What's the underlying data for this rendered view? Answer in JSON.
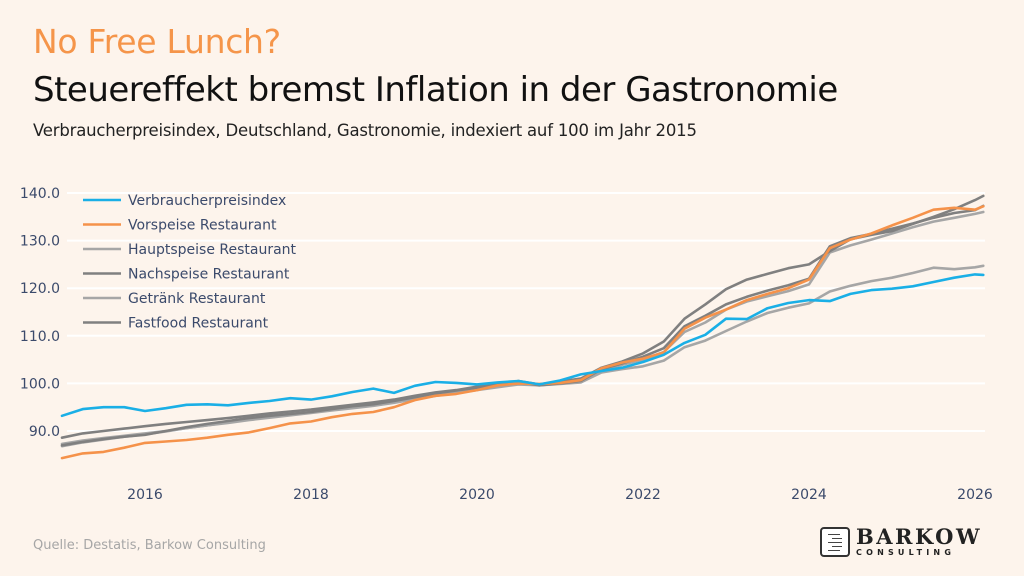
{
  "header": {
    "kicker": "No Free Lunch?",
    "title": "Steuereffekt bremst Inflation in der Gastronomie",
    "subtitle": "Verbraucherpreisindex, Deutschland, Gastronomie, indexiert auf 100 im Jahr 2015"
  },
  "footer": {
    "source": "Quelle: Destatis, Barkow Consulting",
    "logo_name": "BARKOW",
    "logo_sub": "CONSULTING"
  },
  "chart_data": {
    "type": "line",
    "title": "Steuereffekt bremst Inflation in der Gastronomie",
    "subtitle": "Verbraucherpreisindex, Deutschland, Gastronomie, indexiert auf 100 im Jahr 2015",
    "xlabel": "",
    "ylabel": "",
    "xlim": [
      2015.0,
      2026.15
    ],
    "ylim": [
      80.5,
      142.5
    ],
    "xticks": [
      2016,
      2018,
      2020,
      2022,
      2024,
      2026
    ],
    "xtick_labels": [
      "2016",
      "2018",
      "2020",
      "2022",
      "2024",
      "2026"
    ],
    "yticks": [
      90,
      100,
      110,
      120,
      130,
      140
    ],
    "ytick_labels": [
      "90.0",
      "100.0",
      "110.0",
      "120.0",
      "130.0",
      "140.0"
    ],
    "grid": "horizontal",
    "legend_position": "top-left",
    "x": [
      2015.0,
      2015.25,
      2015.5,
      2015.75,
      2016.0,
      2016.25,
      2016.5,
      2016.75,
      2017.0,
      2017.25,
      2017.5,
      2017.75,
      2018.0,
      2018.25,
      2018.5,
      2018.75,
      2019.0,
      2019.25,
      2019.5,
      2019.75,
      2020.0,
      2020.25,
      2020.5,
      2020.75,
      2021.0,
      2021.25,
      2021.5,
      2021.75,
      2022.0,
      2022.25,
      2022.5,
      2022.75,
      2023.0,
      2023.25,
      2023.5,
      2023.75,
      2024.0,
      2024.25,
      2024.5,
      2024.75,
      2025.0,
      2025.25,
      2025.5,
      2025.75,
      2026.0,
      2026.1
    ],
    "series": [
      {
        "name": "Verbraucherpreisindex",
        "color": "#1aafe6",
        "values": [
          93.2,
          94.6,
          95.0,
          95.0,
          94.2,
          94.8,
          95.5,
          95.6,
          95.4,
          95.9,
          96.3,
          96.9,
          96.6,
          97.3,
          98.2,
          98.9,
          98.0,
          99.5,
          100.3,
          100.1,
          99.8,
          100.2,
          100.5,
          99.8,
          100.6,
          101.9,
          102.6,
          103.3,
          104.5,
          106.0,
          108.5,
          110.2,
          113.6,
          113.5,
          115.8,
          116.9,
          117.5,
          117.3,
          118.8,
          119.6,
          119.9,
          120.4,
          121.3,
          122.2,
          122.9,
          122.8
        ]
      },
      {
        "name": "Vorspeise Restaurant",
        "color": "#f5924a",
        "values": [
          84.3,
          85.3,
          85.6,
          86.5,
          87.5,
          87.8,
          88.1,
          88.6,
          89.2,
          89.7,
          90.6,
          91.6,
          92.0,
          92.9,
          93.6,
          94.0,
          95.0,
          96.5,
          97.4,
          97.8,
          98.6,
          99.6,
          100.0,
          99.9,
          100.1,
          100.7,
          103.2,
          104.4,
          105.2,
          106.5,
          111.5,
          113.8,
          115.5,
          117.5,
          118.8,
          120.0,
          121.8,
          128.4,
          130.2,
          131.5,
          133.2,
          134.8,
          136.5,
          136.9,
          136.5,
          137.2
        ]
      },
      {
        "name": "Hauptspeise Restaurant",
        "color": "#a6a6a6",
        "values": [
          86.8,
          87.6,
          88.2,
          88.8,
          89.3,
          89.9,
          90.6,
          91.2,
          91.8,
          92.4,
          93.1,
          93.6,
          94.0,
          94.6,
          95.2,
          95.6,
          96.2,
          97.0,
          97.8,
          98.4,
          99.0,
          99.6,
          100.0,
          99.7,
          100.1,
          100.6,
          102.8,
          103.9,
          105.0,
          106.6,
          110.8,
          112.8,
          115.5,
          117.2,
          118.3,
          119.4,
          120.8,
          127.5,
          129.0,
          130.2,
          131.5,
          132.8,
          134.0,
          134.8,
          135.6,
          136.0
        ]
      },
      {
        "name": "Nachspeise Restaurant",
        "color": "#808080",
        "values": [
          88.6,
          89.5,
          90.0,
          90.5,
          91.0,
          91.5,
          91.9,
          92.3,
          92.7,
          93.2,
          93.7,
          94.1,
          94.5,
          95.0,
          95.5,
          96.0,
          96.6,
          97.4,
          98.1,
          98.6,
          99.3,
          99.8,
          100.5,
          99.8,
          100.4,
          101.0,
          103.3,
          104.6,
          106.3,
          108.8,
          113.6,
          116.6,
          119.8,
          121.8,
          123.0,
          124.2,
          125.0,
          127.8,
          130.3,
          131.2,
          132.0,
          133.5,
          135.0,
          136.6,
          138.5,
          139.4
        ]
      },
      {
        "name": "Getränk Restaurant",
        "color": "#a6a6a6",
        "values": [
          87.3,
          88.0,
          88.5,
          89.0,
          89.5,
          90.0,
          90.6,
          91.2,
          91.7,
          92.3,
          92.8,
          93.3,
          93.8,
          94.3,
          94.8,
          95.3,
          95.9,
          96.7,
          97.4,
          98.0,
          98.6,
          99.2,
          99.8,
          99.6,
          99.9,
          100.2,
          102.3,
          103.0,
          103.6,
          104.8,
          107.6,
          109.0,
          111.0,
          113.0,
          114.8,
          115.9,
          116.8,
          119.3,
          120.5,
          121.5,
          122.2,
          123.2,
          124.3,
          124.0,
          124.4,
          124.7
        ]
      },
      {
        "name": "Fastfood Restaurant",
        "color": "#808080",
        "values": [
          87.0,
          87.7,
          88.3,
          88.8,
          89.2,
          90.0,
          90.8,
          91.5,
          92.1,
          92.7,
          93.2,
          93.6,
          94.0,
          94.6,
          95.2,
          95.6,
          96.3,
          97.1,
          97.9,
          98.5,
          99.1,
          99.7,
          100.3,
          99.6,
          100.0,
          100.5,
          103.0,
          104.2,
          105.6,
          107.4,
          112.0,
          114.2,
          116.6,
          118.2,
          119.5,
          120.6,
          122.0,
          128.8,
          130.5,
          131.4,
          132.5,
          133.6,
          134.8,
          135.8,
          136.4,
          137.3
        ]
      }
    ]
  }
}
